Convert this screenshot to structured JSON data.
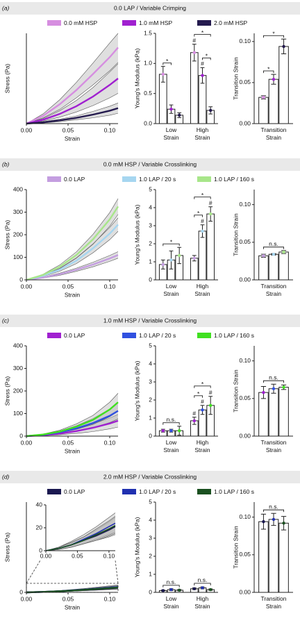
{
  "chart_data": [
    {
      "type": "line",
      "panel_label": "(a)",
      "title": "0.0 LAP / Variable Crimping",
      "xlabel": "Strain",
      "ylabel": "Stress (Pa)",
      "x": [
        0,
        0.02,
        0.04,
        0.06,
        0.08,
        0.1,
        0.11
      ],
      "xlim": [
        0,
        0.11
      ],
      "xticks": [
        {
          "value": 0,
          "label": "0.00"
        },
        {
          "value": 0.05,
          "label": "0.05"
        },
        {
          "value": 0.1,
          "label": "0.10"
        }
      ],
      "ylim": [
        0,
        140
      ],
      "band_color": "#b8b8b8",
      "series": [
        {
          "name": "0.0 mM HSP",
          "color": "#d68ee0",
          "values": [
            0,
            12,
            30,
            52,
            77,
            103,
            118
          ],
          "lower": [
            0,
            9,
            22,
            40,
            60,
            82,
            95
          ],
          "upper": [
            0,
            15,
            37,
            64,
            94,
            125,
            140
          ]
        },
        {
          "name": "1.0 mM HSP",
          "color": "#a020d0",
          "values": [
            0,
            6,
            15,
            27,
            42,
            60,
            70
          ],
          "lower": [
            0,
            4,
            10,
            18,
            28,
            40,
            47
          ],
          "upper": [
            0,
            8,
            20,
            36,
            56,
            80,
            93
          ]
        },
        {
          "name": "2.0 mM HSP",
          "color": "#241a4e",
          "values": [
            0,
            2,
            5,
            9,
            14,
            20,
            24
          ],
          "lower": [
            0,
            1,
            3,
            6,
            9,
            13,
            16
          ],
          "upper": [
            0,
            3,
            7,
            12,
            19,
            27,
            32
          ]
        }
      ]
    },
    {
      "type": "bar",
      "ylabel": "Young's Modulus (kPa)",
      "categories": [
        "Low Strain",
        "High Strain"
      ],
      "ylim": [
        0,
        1.5
      ],
      "yticks": [
        {
          "value": 0,
          "label": "0.0"
        },
        {
          "value": 0.5,
          "label": "0.5"
        },
        {
          "value": 1,
          "label": "1.0"
        },
        {
          "value": 1.5,
          "label": "1.5"
        }
      ],
      "series": [
        {
          "values": [
            0.82,
            1.18
          ],
          "errors": [
            0.13,
            0.14
          ],
          "marks": [
            null,
            "#"
          ]
        },
        {
          "values": [
            0.24,
            0.8
          ],
          "errors": [
            0.07,
            0.13
          ],
          "marks": [
            null,
            "#"
          ]
        },
        {
          "values": [
            0.14,
            0.22
          ],
          "errors": [
            0.04,
            0.06
          ],
          "marks": [
            null,
            null
          ]
        }
      ],
      "brackets": [
        {
          "category": 0,
          "from": 0,
          "to": 1,
          "label": "*"
        },
        {
          "category": 1,
          "from": 1,
          "to": 2,
          "label": "*"
        },
        {
          "category": 1,
          "from": 0,
          "to": 2,
          "label": "*"
        }
      ]
    },
    {
      "type": "bar",
      "ylabel": "Transition Strain",
      "categories": [
        "Transition Strain"
      ],
      "ylim": [
        0,
        0.11
      ],
      "yticks": [
        {
          "value": 0,
          "label": "0.00"
        },
        {
          "value": 0.05,
          "label": "0.05"
        },
        {
          "value": 0.1,
          "label": "0.10"
        }
      ],
      "series": [
        {
          "values": [
            0.032
          ],
          "errors": [
            0.002
          ]
        },
        {
          "values": [
            0.054
          ],
          "errors": [
            0.006
          ]
        },
        {
          "values": [
            0.094
          ],
          "errors": [
            0.009
          ]
        }
      ],
      "brackets": [
        {
          "category": 0,
          "from": 0,
          "to": 1,
          "label": "*"
        },
        {
          "category": 0,
          "from": 0,
          "to": 2,
          "label": "*"
        }
      ]
    },
    {
      "type": "line",
      "panel_label": "(b)",
      "title": "0.0 mM HSP / Variable Crosslinking",
      "xlabel": "Strain",
      "ylabel": "Stress (Pa)",
      "x": [
        0,
        0.02,
        0.04,
        0.06,
        0.08,
        0.1,
        0.11
      ],
      "xlim": [
        0,
        0.11
      ],
      "xticks": [
        {
          "value": 0,
          "label": "0.00"
        },
        {
          "value": 0.05,
          "label": "0.05"
        },
        {
          "value": 0.1,
          "label": "0.10"
        }
      ],
      "ylim": [
        0,
        400
      ],
      "yticks": [
        0,
        100,
        200,
        300,
        400
      ],
      "band_color": "#b8b8b8",
      "series": [
        {
          "name": "0.0 LAP",
          "color": "#c49ee0",
          "values": [
            0,
            10,
            25,
            45,
            68,
            95,
            110
          ],
          "lower": [
            0,
            8,
            20,
            38,
            58,
            82,
            96
          ],
          "upper": [
            0,
            12,
            30,
            52,
            78,
            108,
            125
          ]
        },
        {
          "name": "1.0 LAP / 20 s",
          "color": "#a6d6f0",
          "values": [
            0,
            18,
            45,
            85,
            140,
            205,
            245
          ],
          "lower": [
            0,
            15,
            38,
            72,
            120,
            178,
            215
          ],
          "upper": [
            0,
            21,
            52,
            98,
            160,
            232,
            275
          ]
        },
        {
          "name": "1.0 LAP / 160 s",
          "color": "#a8e68a",
          "values": [
            0,
            22,
            58,
            110,
            180,
            268,
            325
          ],
          "lower": [
            0,
            19,
            50,
            96,
            158,
            238,
            290
          ],
          "upper": [
            0,
            25,
            66,
            124,
            202,
            298,
            360
          ]
        }
      ]
    },
    {
      "type": "bar",
      "ylabel": "Young's Modulus (kPa)",
      "categories": [
        "Low Strain",
        "High Strain"
      ],
      "ylim": [
        0,
        5
      ],
      "yticks": [
        0,
        1,
        2,
        3,
        4,
        5
      ],
      "series": [
        {
          "values": [
            0.85,
            1.2
          ],
          "errors": [
            0.25,
            0.15
          ],
          "marks": [
            null,
            null
          ]
        },
        {
          "values": [
            1.1,
            2.7
          ],
          "errors": [
            0.5,
            0.35
          ],
          "marks": [
            null,
            "#"
          ]
        },
        {
          "values": [
            1.35,
            3.65
          ],
          "errors": [
            0.45,
            0.4
          ],
          "marks": [
            null,
            "#"
          ]
        }
      ],
      "brackets": [
        {
          "category": 0,
          "from": 0,
          "to": 2,
          "label": "*"
        },
        {
          "category": 1,
          "from": 0,
          "to": 1,
          "label": "*"
        },
        {
          "category": 1,
          "from": 0,
          "to": 2,
          "label": "*"
        }
      ]
    },
    {
      "type": "bar",
      "ylabel": "Transition Strain",
      "categories": [
        "Transition Strain"
      ],
      "ylim": [
        0,
        0.12
      ],
      "yticks": [
        {
          "value": 0,
          "label": "0.00"
        },
        {
          "value": 0.05,
          "label": "0.05"
        },
        {
          "value": 0.1,
          "label": "0.10"
        }
      ],
      "series": [
        {
          "values": [
            0.032
          ],
          "errors": [
            0.002
          ]
        },
        {
          "values": [
            0.034
          ],
          "errors": [
            0.001
          ]
        },
        {
          "values": [
            0.037
          ],
          "errors": [
            0.002
          ]
        }
      ],
      "brackets": [
        {
          "category": 0,
          "from": 0,
          "to": 2,
          "label": "n.s."
        }
      ]
    },
    {
      "type": "line",
      "panel_label": "(c)",
      "title": "1.0 mM HSP / Variable Crosslinking",
      "xlabel": "Strain",
      "ylabel": "Stress (Pa)",
      "x": [
        0,
        0.02,
        0.04,
        0.06,
        0.08,
        0.1,
        0.11
      ],
      "xlim": [
        0,
        0.11
      ],
      "xticks": [
        {
          "value": 0,
          "label": "0.00"
        },
        {
          "value": 0.05,
          "label": "0.05"
        },
        {
          "value": 0.1,
          "label": "0.10"
        }
      ],
      "ylim": [
        0,
        400
      ],
      "yticks": [
        0,
        100,
        200,
        300,
        400
      ],
      "band_color": "#b8b8b8",
      "series": [
        {
          "name": "0.0 LAP",
          "color": "#a020d0",
          "values": [
            0,
            4,
            11,
            22,
            37,
            56,
            68
          ],
          "lower": [
            0,
            2,
            6,
            12,
            20,
            32,
            40
          ],
          "upper": [
            0,
            6,
            16,
            32,
            54,
            80,
            96
          ]
        },
        {
          "name": "1.0 LAP / 20 s",
          "color": "#3050e0",
          "values": [
            0,
            6,
            17,
            34,
            58,
            90,
            112
          ],
          "lower": [
            0,
            4,
            11,
            22,
            38,
            60,
            76
          ],
          "upper": [
            0,
            8,
            23,
            46,
            78,
            120,
            148
          ]
        },
        {
          "name": "1.0 LAP / 160 s",
          "color": "#40e020",
          "values": [
            0,
            7,
            20,
            42,
            72,
            118,
            150
          ],
          "lower": [
            0,
            5,
            14,
            30,
            52,
            86,
            110
          ],
          "upper": [
            0,
            9,
            26,
            54,
            92,
            150,
            190
          ]
        }
      ]
    },
    {
      "type": "bar",
      "ylabel": "Young's Modulus (kPa)",
      "categories": [
        "Low Strain",
        "High Strain"
      ],
      "ylim": [
        0,
        5
      ],
      "yticks": [
        0,
        1,
        2,
        3,
        4,
        5
      ],
      "series": [
        {
          "values": [
            0.3,
            0.85
          ],
          "errors": [
            0.08,
            0.2
          ],
          "marks": [
            null,
            "#"
          ]
        },
        {
          "values": [
            0.3,
            1.45
          ],
          "errors": [
            0.08,
            0.25
          ],
          "marks": [
            null,
            "#"
          ]
        },
        {
          "values": [
            0.3,
            1.7
          ],
          "errors": [
            0.25,
            0.5
          ],
          "marks": [
            null,
            "#"
          ]
        }
      ],
      "brackets": [
        {
          "category": 0,
          "from": 0,
          "to": 2,
          "label": "n.s."
        },
        {
          "category": 1,
          "from": 0,
          "to": 1,
          "label": "*"
        },
        {
          "category": 1,
          "from": 0,
          "to": 2,
          "label": "*"
        }
      ]
    },
    {
      "type": "bar",
      "ylabel": "Transition Strain",
      "categories": [
        "Transition Strain"
      ],
      "ylim": [
        0,
        0.12
      ],
      "yticks": [
        {
          "value": 0,
          "label": "0.00"
        },
        {
          "value": 0.05,
          "label": "0.05"
        },
        {
          "value": 0.1,
          "label": "0.10"
        }
      ],
      "series": [
        {
          "values": [
            0.058
          ],
          "errors": [
            0.008
          ]
        },
        {
          "values": [
            0.063
          ],
          "errors": [
            0.006
          ]
        },
        {
          "values": [
            0.065
          ],
          "errors": [
            0.003
          ]
        }
      ],
      "brackets": [
        {
          "category": 0,
          "from": 0,
          "to": 2,
          "label": "n.s."
        }
      ]
    },
    {
      "type": "line",
      "panel_label": "(d)",
      "title": "2.0 mM HSP / Variable Crosslinking",
      "xlabel": "Strain",
      "ylabel": "Stress (Pa)",
      "x": [
        0,
        0.02,
        0.04,
        0.06,
        0.08,
        0.1,
        0.11
      ],
      "xlim": [
        0,
        0.11
      ],
      "xticks": [
        {
          "value": 0,
          "label": "0.00"
        },
        {
          "value": 0.05,
          "label": "0.05"
        },
        {
          "value": 0.1,
          "label": "0.10"
        }
      ],
      "ylim": [
        0,
        400
      ],
      "yticks": [
        0
      ],
      "band_color": "#b8b8b8",
      "inset": {
        "ylim": [
          0,
          40
        ],
        "yticks": [
          0,
          20,
          40
        ],
        "xticks": [
          {
            "value": 0,
            "label": "0.00"
          },
          {
            "value": 0.05,
            "label": "0.05"
          },
          {
            "value": 0.1,
            "label": "0.10"
          }
        ]
      },
      "series": [
        {
          "name": "0.0 LAP",
          "color": "#1a1850",
          "values": [
            0,
            2,
            5,
            9,
            13,
            18,
            21
          ],
          "lower": [
            0,
            1,
            3,
            6,
            9,
            12,
            14
          ],
          "upper": [
            0,
            3,
            7,
            12,
            18,
            25,
            29
          ]
        },
        {
          "name": "1.0 LAP / 20 s",
          "color": "#2030b0",
          "values": [
            0,
            2,
            5,
            10,
            15,
            21,
            24
          ],
          "lower": [
            0,
            1,
            3,
            6,
            10,
            14,
            16
          ],
          "upper": [
            0,
            3,
            8,
            14,
            21,
            29,
            33
          ]
        },
        {
          "name": "1.0 LAP / 160 s",
          "color": "#1a5020",
          "values": [
            0,
            2,
            5,
            9,
            14,
            19,
            22
          ],
          "lower": [
            0,
            1,
            3,
            6,
            9,
            13,
            15
          ],
          "upper": [
            0,
            3,
            7,
            12,
            19,
            26,
            30
          ]
        }
      ]
    },
    {
      "type": "bar",
      "ylabel": "Young's Modulus (kPa)",
      "categories": [
        "Low Strain",
        "High Strain"
      ],
      "ylim": [
        0,
        5
      ],
      "yticks": [
        0,
        1,
        2,
        3,
        4,
        5
      ],
      "series": [
        {
          "values": [
            0.1,
            0.2
          ],
          "errors": [
            0.03,
            0.05
          ]
        },
        {
          "values": [
            0.15,
            0.25
          ],
          "errors": [
            0.05,
            0.06
          ]
        },
        {
          "values": [
            0.12,
            0.15
          ],
          "errors": [
            0.04,
            0.04
          ]
        }
      ],
      "brackets": [
        {
          "category": 0,
          "from": 0,
          "to": 2,
          "label": "n.s."
        },
        {
          "category": 1,
          "from": 0,
          "to": 2,
          "label": "n.s."
        }
      ]
    },
    {
      "type": "bar",
      "ylabel": "Transition Strain",
      "categories": [
        "Transition Strain"
      ],
      "ylim": [
        0,
        0.12
      ],
      "yticks": [
        {
          "value": 0,
          "label": "0.00"
        },
        {
          "value": 0.05,
          "label": "0.05"
        },
        {
          "value": 0.1,
          "label": "0.10"
        }
      ],
      "series": [
        {
          "values": [
            0.094
          ],
          "errors": [
            0.01
          ]
        },
        {
          "values": [
            0.097
          ],
          "errors": [
            0.008
          ]
        },
        {
          "values": [
            0.092
          ],
          "errors": [
            0.009
          ]
        }
      ],
      "brackets": [
        {
          "category": 0,
          "from": 0,
          "to": 2,
          "label": "n.s."
        }
      ]
    }
  ]
}
